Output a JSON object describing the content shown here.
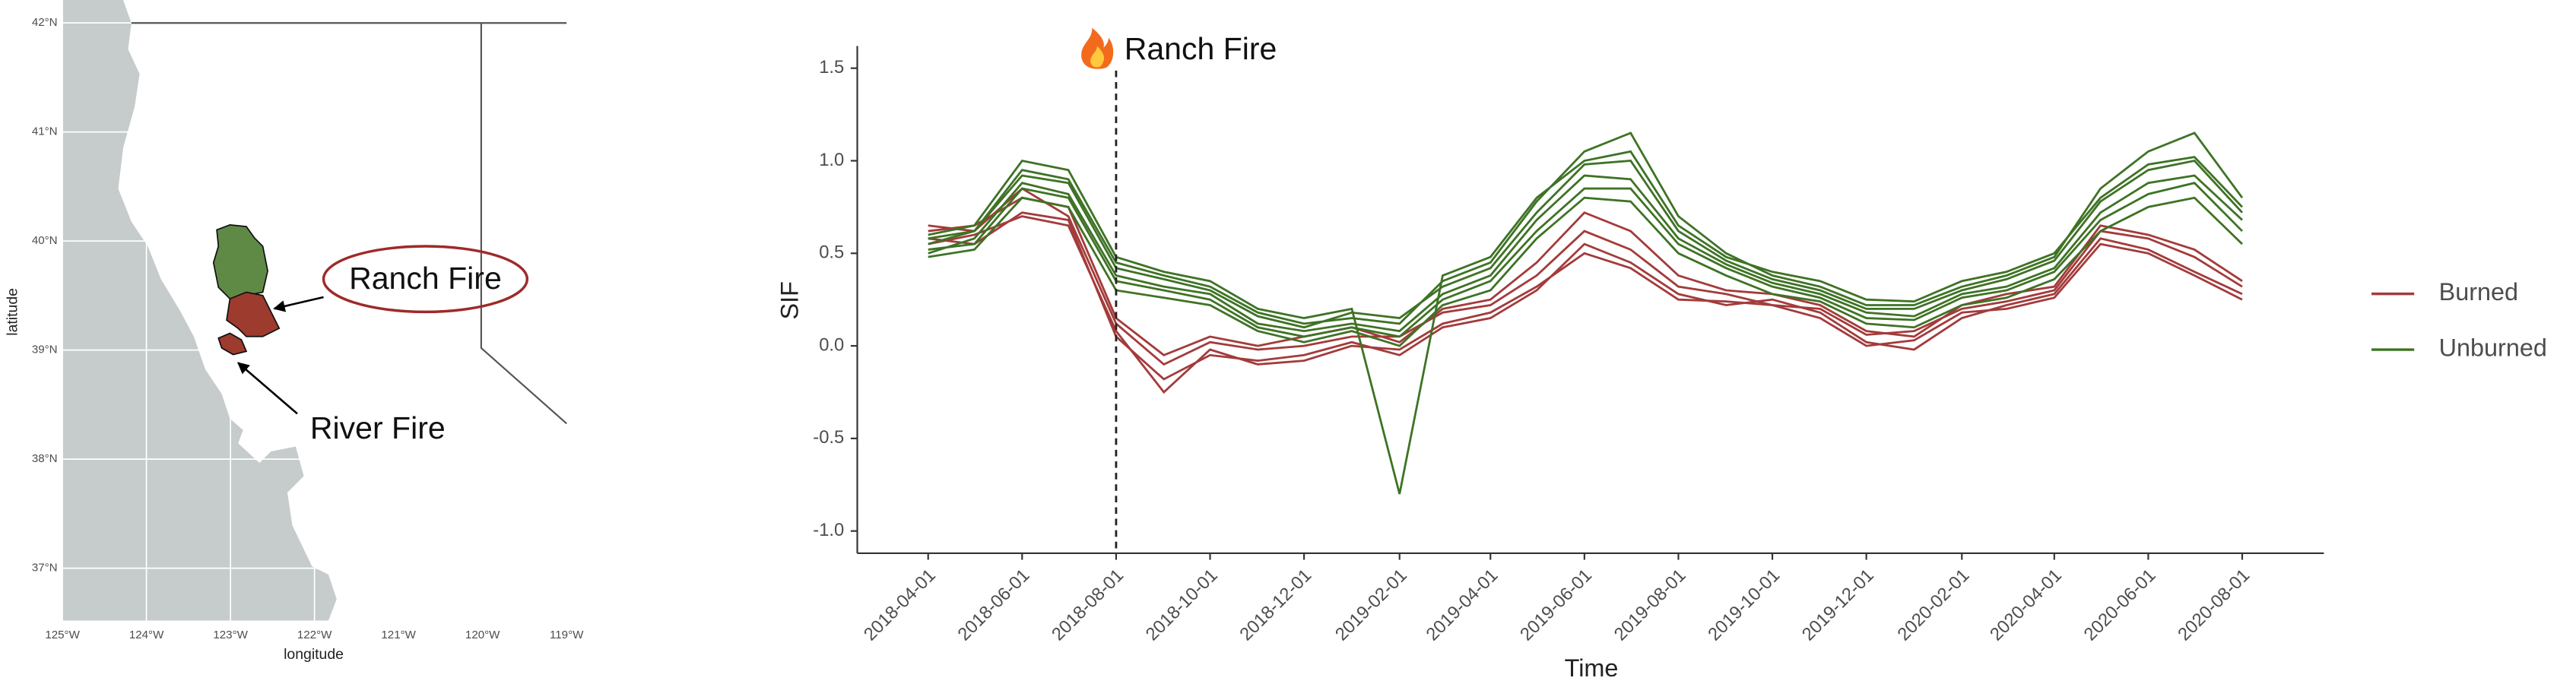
{
  "chart_data": [
    {
      "type": "map",
      "xlabel": "longitude",
      "ylabel": "latitude",
      "xlim": [
        -125,
        -119
      ],
      "ylim": [
        36.52,
        42.21
      ],
      "xticks": [
        {
          "value": -125,
          "label": "125°W"
        },
        {
          "value": -124,
          "label": "124°W"
        },
        {
          "value": -123,
          "label": "123°W"
        },
        {
          "value": -122,
          "label": "122°W"
        },
        {
          "value": -121,
          "label": "121°W"
        },
        {
          "value": -120,
          "label": "120°W"
        },
        {
          "value": -119,
          "label": "119°W"
        }
      ],
      "yticks": [
        {
          "value": 37,
          "label": "37°N"
        },
        {
          "value": 38,
          "label": "38°N"
        },
        {
          "value": 39,
          "label": "39°N"
        },
        {
          "value": 40,
          "label": "40°N"
        },
        {
          "value": 41,
          "label": "41°N"
        },
        {
          "value": 42,
          "label": "42°N"
        }
      ],
      "grid": true,
      "annotations": [
        {
          "text": "Ranch Fire"
        },
        {
          "text": "River Fire"
        }
      ]
    },
    {
      "type": "line",
      "xlabel": "Time",
      "ylabel": "SIF",
      "x": [
        "2018-04-01",
        "2018-05-01",
        "2018-06-01",
        "2018-07-01",
        "2018-08-01",
        "2018-09-01",
        "2018-10-01",
        "2018-11-01",
        "2018-12-01",
        "2019-01-01",
        "2019-02-01",
        "2019-03-01",
        "2019-04-01",
        "2019-05-01",
        "2019-06-01",
        "2019-07-01",
        "2019-08-01",
        "2019-09-01",
        "2019-10-01",
        "2019-11-01",
        "2019-12-01",
        "2020-01-01",
        "2020-02-01",
        "2020-03-01",
        "2020-04-01",
        "2020-05-01",
        "2020-06-01",
        "2020-07-01",
        "2020-08-01"
      ],
      "xlim": [
        "2018-02-14",
        "2020-09-23"
      ],
      "xticks": [
        "2018-04-01",
        "2018-06-01",
        "2018-08-01",
        "2018-10-01",
        "2018-12-01",
        "2019-02-01",
        "2019-04-01",
        "2019-06-01",
        "2019-08-01",
        "2019-10-01",
        "2019-12-01",
        "2020-02-01",
        "2020-04-01",
        "2020-06-01",
        "2020-08-01"
      ],
      "ylim": [
        -1.12,
        1.62
      ],
      "yticks": [
        {
          "value": -1,
          "label": "-1.0"
        },
        -0.5,
        {
          "value": 0,
          "label": "0.0"
        },
        0.5,
        {
          "value": 1,
          "label": "1.0"
        },
        1.5
      ],
      "grid": false,
      "legend": "right",
      "annotations": [
        {
          "x": "2018-08-01",
          "text": "Ranch Fire"
        }
      ],
      "series": [
        {
          "name": "Burned",
          "color": "#a33b3b",
          "lines": [
            [
              0.62,
              0.65,
              0.8,
              0.75,
              0.15,
              -0.05,
              0.05,
              0.0,
              0.05,
              0.1,
              0.02,
              0.2,
              0.25,
              0.45,
              0.72,
              0.62,
              0.38,
              0.3,
              0.28,
              0.22,
              0.08,
              0.05,
              0.22,
              0.28,
              0.32,
              0.65,
              0.6,
              0.52,
              0.35
            ],
            [
              0.58,
              0.55,
              0.72,
              0.68,
              0.05,
              -0.18,
              -0.05,
              -0.08,
              -0.05,
              0.02,
              -0.05,
              0.1,
              0.15,
              0.3,
              0.55,
              0.45,
              0.28,
              0.22,
              0.25,
              0.18,
              0.02,
              -0.02,
              0.15,
              0.22,
              0.28,
              0.58,
              0.52,
              0.4,
              0.28
            ],
            [
              0.65,
              0.62,
              0.85,
              0.7,
              0.12,
              -0.1,
              0.02,
              -0.02,
              0.0,
              0.05,
              0.05,
              0.18,
              0.22,
              0.38,
              0.62,
              0.52,
              0.32,
              0.28,
              0.22,
              0.2,
              0.06,
              0.08,
              0.2,
              0.24,
              0.3,
              0.62,
              0.58,
              0.48,
              0.32
            ],
            [
              0.55,
              0.6,
              0.7,
              0.65,
              0.08,
              -0.25,
              -0.02,
              -0.1,
              -0.08,
              0.0,
              -0.02,
              0.12,
              0.18,
              0.32,
              0.5,
              0.42,
              0.25,
              0.24,
              0.22,
              0.15,
              0.0,
              0.03,
              0.18,
              0.2,
              0.26,
              0.55,
              0.5,
              0.38,
              0.25
            ]
          ]
        },
        {
          "name": "Unburned",
          "color": "#3e7325",
          "lines": [
            [
              0.55,
              0.62,
              0.95,
              0.9,
              0.45,
              0.38,
              0.32,
              0.18,
              0.12,
              0.15,
              0.12,
              0.35,
              0.45,
              0.78,
              1.05,
              1.15,
              0.7,
              0.5,
              0.38,
              0.32,
              0.22,
              0.22,
              0.32,
              0.38,
              0.48,
              0.85,
              1.05,
              1.15,
              0.8
            ],
            [
              0.5,
              0.58,
              0.88,
              0.82,
              0.38,
              0.32,
              0.28,
              0.12,
              0.08,
              0.12,
              0.08,
              0.28,
              0.38,
              0.68,
              0.92,
              0.9,
              0.58,
              0.44,
              0.34,
              0.28,
              0.18,
              0.16,
              0.28,
              0.32,
              0.42,
              0.72,
              0.88,
              0.92,
              0.68
            ],
            [
              0.6,
              0.65,
              1.0,
              0.95,
              0.48,
              0.4,
              0.35,
              0.2,
              0.15,
              0.2,
              -0.8,
              0.38,
              0.48,
              0.8,
              1.0,
              1.05,
              0.65,
              0.48,
              0.4,
              0.35,
              0.25,
              0.24,
              0.35,
              0.4,
              0.5,
              0.8,
              0.98,
              1.02,
              0.75
            ],
            [
              0.52,
              0.55,
              0.85,
              0.8,
              0.35,
              0.3,
              0.25,
              0.1,
              0.05,
              0.1,
              0.05,
              0.25,
              0.35,
              0.62,
              0.85,
              0.85,
              0.55,
              0.42,
              0.32,
              0.26,
              0.15,
              0.14,
              0.26,
              0.3,
              0.4,
              0.68,
              0.82,
              0.88,
              0.62
            ],
            [
              0.58,
              0.62,
              0.92,
              0.88,
              0.42,
              0.36,
              0.3,
              0.16,
              0.1,
              0.18,
              0.15,
              0.32,
              0.42,
              0.72,
              0.98,
              1.0,
              0.62,
              0.46,
              0.36,
              0.3,
              0.2,
              0.2,
              0.3,
              0.36,
              0.46,
              0.78,
              0.95,
              1.0,
              0.72
            ],
            [
              0.48,
              0.52,
              0.8,
              0.75,
              0.3,
              0.26,
              0.22,
              0.08,
              0.02,
              0.08,
              0.0,
              0.22,
              0.3,
              0.58,
              0.8,
              0.78,
              0.5,
              0.38,
              0.28,
              0.24,
              0.12,
              0.1,
              0.22,
              0.26,
              0.36,
              0.62,
              0.75,
              0.8,
              0.55
            ]
          ]
        }
      ]
    }
  ]
}
